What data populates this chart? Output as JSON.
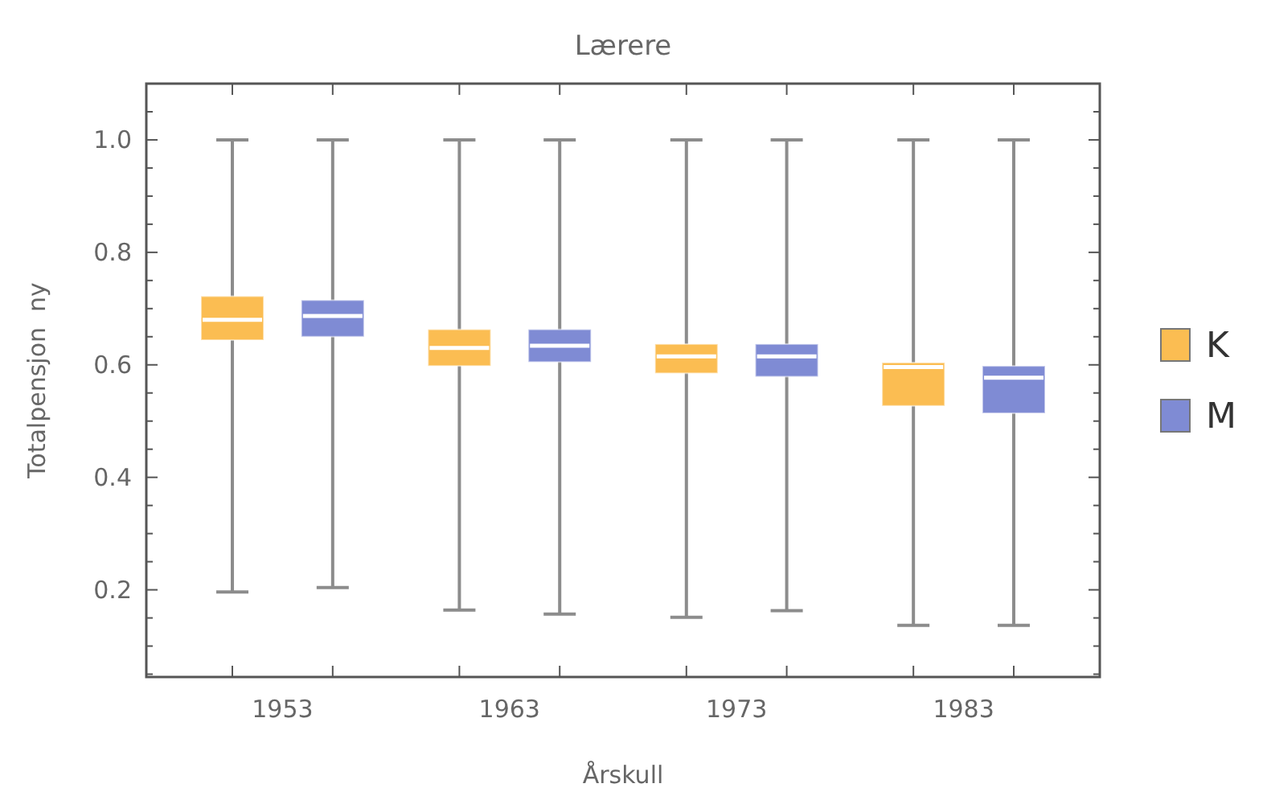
{
  "chart_data": {
    "type": "box",
    "title": "Lærere",
    "xlabel": "Årskull",
    "ylabel": "Totalpensjon  ny",
    "categories": [
      "1953",
      "1963",
      "1973",
      "1983"
    ],
    "ylim": [
      0.045,
      1.1
    ],
    "yticks": [
      {
        "value": 0.05,
        "label": null
      },
      {
        "value": 0.1,
        "label": null
      },
      {
        "value": 0.15,
        "label": null
      },
      0.2,
      {
        "value": 0.25,
        "label": null
      },
      {
        "value": 0.3,
        "label": null
      },
      {
        "value": 0.35,
        "label": null
      },
      0.4,
      {
        "value": 0.45,
        "label": null
      },
      {
        "value": 0.5,
        "label": null
      },
      {
        "value": 0.55,
        "label": null
      },
      0.6,
      {
        "value": 0.65,
        "label": null
      },
      {
        "value": 0.7,
        "label": null
      },
      {
        "value": 0.75,
        "label": null
      },
      0.8,
      {
        "value": 0.85,
        "label": null
      },
      {
        "value": 0.9,
        "label": null
      },
      {
        "value": 0.95,
        "label": null
      },
      {
        "value": 1.0,
        "label": "1.0"
      },
      {
        "value": 1.05,
        "label": null
      }
    ],
    "grid": false,
    "legend": "right",
    "series": [
      {
        "name": "K",
        "color": "#fbbd52",
        "boxes": [
          {
            "low": 0.196,
            "q1": 0.644,
            "median": 0.68,
            "q3": 0.722,
            "high": 1.0
          },
          {
            "low": 0.164,
            "q1": 0.598,
            "median": 0.63,
            "q3": 0.663,
            "high": 1.0
          },
          {
            "low": 0.151,
            "q1": 0.585,
            "median": 0.615,
            "q3": 0.637,
            "high": 1.0
          },
          {
            "low": 0.137,
            "q1": 0.527,
            "median": 0.596,
            "q3": 0.604,
            "high": 1.0
          }
        ]
      },
      {
        "name": "M",
        "color": "#7f8bd4",
        "boxes": [
          {
            "low": 0.204,
            "q1": 0.65,
            "median": 0.687,
            "q3": 0.715,
            "high": 1.0
          },
          {
            "low": 0.157,
            "q1": 0.605,
            "median": 0.634,
            "q3": 0.663,
            "high": 1.0
          },
          {
            "low": 0.163,
            "q1": 0.579,
            "median": 0.615,
            "q3": 0.637,
            "high": 1.0
          },
          {
            "low": 0.137,
            "q1": 0.514,
            "median": 0.577,
            "q3": 0.598,
            "high": 1.0
          }
        ]
      }
    ]
  }
}
